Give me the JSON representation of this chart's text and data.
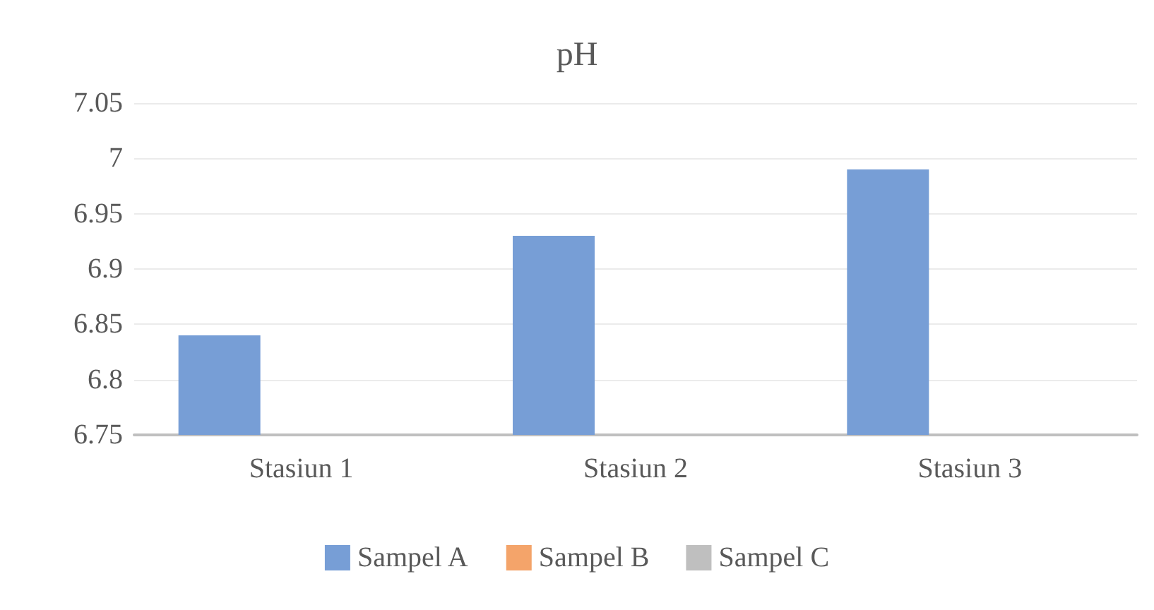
{
  "chart_data": {
    "type": "bar",
    "title": "pH",
    "categories": [
      "Stasiun 1",
      "Stasiun 2",
      "Stasiun 3"
    ],
    "series": [
      {
        "name": "Sampel A",
        "color": "#779ed6",
        "values": [
          6.84,
          6.93,
          6.99
        ]
      },
      {
        "name": "Sampel B",
        "color": "#f4a46a",
        "values": [
          null,
          null,
          null
        ]
      },
      {
        "name": "Sampel C",
        "color": "#bfbfbf",
        "values": [
          null,
          null,
          null
        ]
      }
    ],
    "ylim": [
      6.75,
      7.05
    ],
    "yticks": [
      6.75,
      6.8,
      6.85,
      6.9,
      6.95,
      7,
      7.05
    ],
    "grid": "y",
    "legend": "bottom"
  }
}
